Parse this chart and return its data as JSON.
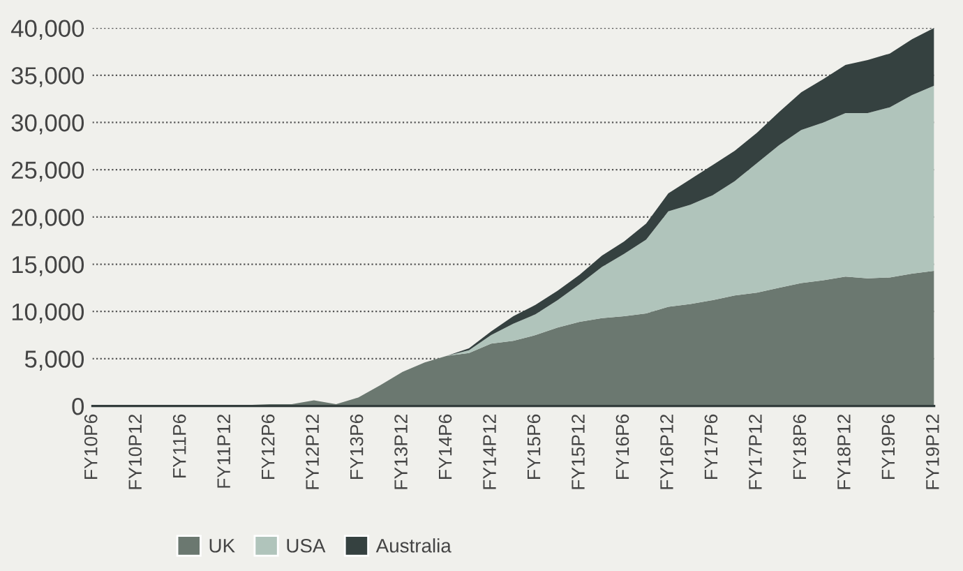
{
  "chart_data": {
    "type": "area",
    "stacked": true,
    "categories": [
      "FY10P6",
      null,
      "FY10P12",
      null,
      "FY11P6",
      null,
      "FY11P12",
      null,
      "FY12P6",
      null,
      "FY12P12",
      null,
      "FY13P6",
      null,
      "FY13P12",
      null,
      "FY14P6",
      null,
      "FY14P12",
      null,
      "FY15P6",
      null,
      "FY15P12",
      null,
      "FY16P6",
      null,
      "FY16P12",
      null,
      "FY17P6",
      null,
      "FY17P12",
      null,
      "FY18P6",
      null,
      "FY18P12",
      null,
      "FY19P6",
      null,
      "FY19P12"
    ],
    "series": [
      {
        "name": "UK",
        "color": "#6b7870",
        "values": [
          100,
          100,
          100,
          100,
          100,
          100,
          100,
          100,
          200,
          200,
          600,
          200,
          900,
          2200,
          3600,
          4600,
          5300,
          5600,
          6600,
          6900,
          7500,
          8300,
          8900,
          9300,
          9500,
          9800,
          10500,
          10800,
          11200,
          11700,
          12000,
          12500,
          13000,
          13300,
          13700,
          13500,
          13600,
          14000,
          14300
        ]
      },
      {
        "name": "USA",
        "color": "#b0c4bb",
        "values": [
          0,
          0,
          0,
          0,
          0,
          0,
          0,
          0,
          0,
          0,
          0,
          0,
          0,
          0,
          0,
          0,
          0,
          300,
          900,
          1800,
          2200,
          2900,
          4000,
          5400,
          6600,
          7800,
          10100,
          10500,
          11100,
          12100,
          13700,
          15100,
          16200,
          16700,
          17300,
          17500,
          18000,
          18900,
          19600
        ]
      },
      {
        "name": "Australia",
        "color": "#354140",
        "values": [
          0,
          0,
          0,
          0,
          0,
          0,
          0,
          0,
          0,
          0,
          0,
          0,
          0,
          0,
          0,
          0,
          0,
          200,
          400,
          800,
          1000,
          1000,
          1000,
          1200,
          1300,
          1700,
          1900,
          2700,
          3200,
          3200,
          3200,
          3500,
          4000,
          4600,
          5100,
          5600,
          5700,
          5900,
          6100
        ]
      }
    ],
    "ylim": [
      0,
      40000
    ],
    "yticks": [
      {
        "value": 0,
        "label": "0"
      },
      {
        "value": 5000,
        "label": "5,000"
      },
      {
        "value": 10000,
        "label": "10,000"
      },
      {
        "value": 15000,
        "label": "15,000"
      },
      {
        "value": 20000,
        "label": "20,000"
      },
      {
        "value": 25000,
        "label": "25,000"
      },
      {
        "value": 30000,
        "label": "30,000"
      },
      {
        "value": 35000,
        "label": "35,000"
      },
      {
        "value": 40000,
        "label": "40,000"
      }
    ],
    "grid": "y",
    "legend": "bottom left"
  }
}
